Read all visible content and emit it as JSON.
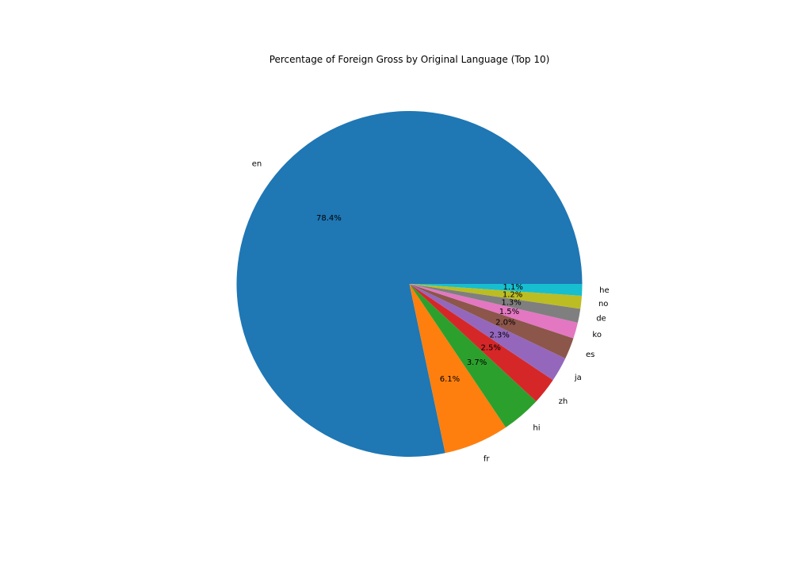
{
  "chart_data": {
    "type": "pie",
    "title": "Percentage of Foreign Gross by Original Language (Top 10)",
    "categories": [
      "en",
      "fr",
      "hi",
      "zh",
      "ja",
      "es",
      "ko",
      "de",
      "no",
      "he"
    ],
    "values": [
      78.4,
      6.1,
      3.7,
      2.5,
      2.3,
      2.0,
      1.5,
      1.3,
      1.2,
      1.1
    ],
    "value_labels": [
      "78.4%",
      "6.1%",
      "3.7%",
      "2.5%",
      "2.3%",
      "2.0%",
      "1.5%",
      "1.3%",
      "1.2%",
      "1.1%"
    ],
    "colors": [
      "#1f77b4",
      "#ff7f0e",
      "#2ca02c",
      "#d62728",
      "#9467bd",
      "#8c564b",
      "#e377c2",
      "#7f7f7f",
      "#bcbd22",
      "#17becf"
    ],
    "start_angle": "0 degrees (3 o'clock)",
    "direction": "counterclockwise",
    "legend": "none"
  }
}
